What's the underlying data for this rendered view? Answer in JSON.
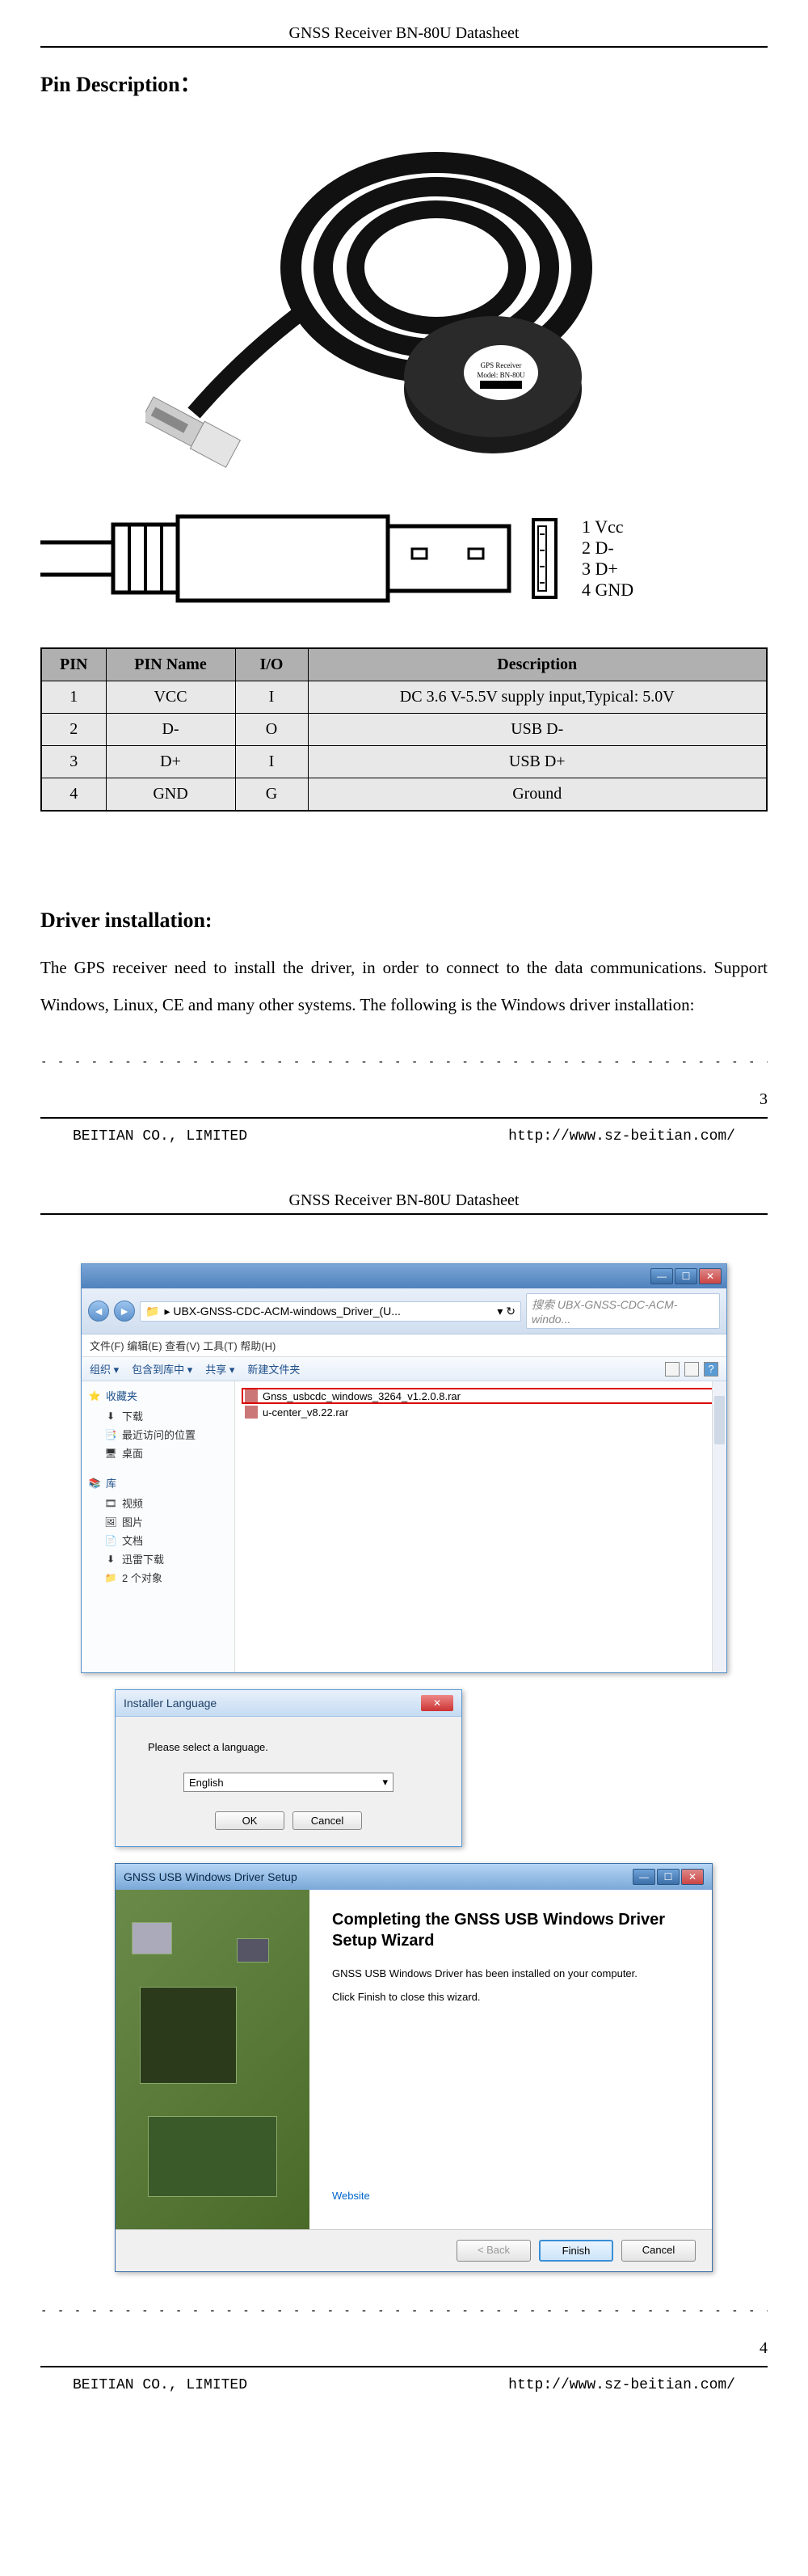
{
  "doc": {
    "header": "GNSS Receiver BN-80U Datasheet",
    "footer_company": "BEITIAN CO., LIMITED",
    "footer_url": "http://www.sz-beitian.com/"
  },
  "page3": {
    "section_title": "Pin Description：",
    "pin_labels": [
      "1 Vcc",
      "2 D-",
      "3 D+",
      "4 GND"
    ],
    "table": {
      "headers": [
        "PIN",
        "PIN Name",
        "I/O",
        "Description"
      ],
      "rows": [
        [
          "1",
          "VCC",
          "I",
          "DC 3.6 V-5.5V supply input,Typical: 5.0V"
        ],
        [
          "2",
          "D-",
          "O",
          "USB D-"
        ],
        [
          "3",
          "D+",
          "I",
          "USB D+"
        ],
        [
          "4",
          "GND",
          "G",
          "Ground"
        ]
      ],
      "col_widths": [
        "80px",
        "160px",
        "90px",
        "auto"
      ]
    },
    "section2_title": "Driver installation:",
    "body_text": "The GPS receiver need to install the driver, in order to connect to the data communications. Support Windows, Linux, CE and many other systems. The following is the Windows driver installation:",
    "page_num": "3"
  },
  "page4": {
    "explorer": {
      "address": "▸ UBX-GNSS-CDC-ACM-windows_Driver_(U...",
      "search_placeholder": "搜索 UBX-GNSS-CDC-ACM-windo...",
      "menu": "文件(F)   编辑(E)   查看(V)   工具(T)   帮助(H)",
      "toolbar": {
        "organize": "组织 ▾",
        "include": "包含到库中 ▾",
        "share": "共享 ▾",
        "newfolder": "新建文件夹"
      },
      "sidebar": {
        "favorites": "收藏夹",
        "fav_items": [
          "下载",
          "最近访问的位置",
          "桌面"
        ],
        "library": "库",
        "lib_items": [
          "视频",
          "图片",
          "文档",
          "迅雷下载",
          "2 个对象"
        ]
      },
      "files": [
        {
          "name": "Gnss_usbcdc_windows_3264_v1.2.0.8.rar",
          "highlighted": true
        },
        {
          "name": "u-center_v8.22.rar",
          "highlighted": false
        }
      ]
    },
    "installer": {
      "title": "Installer Language",
      "prompt": "Please select a language.",
      "language": "English",
      "ok": "OK",
      "cancel": "Cancel"
    },
    "wizard": {
      "title": "GNSS USB Windows Driver Setup",
      "heading": "Completing the GNSS USB Windows Driver Setup Wizard",
      "line1": "GNSS USB Windows Driver has been installed on your computer.",
      "line2": "Click Finish to close this wizard.",
      "website": "Website",
      "back": "< Back",
      "finish": "Finish",
      "cancel": "Cancel"
    },
    "page_num": "4"
  },
  "colors": {
    "table_header_bg": "#b0b0b0",
    "table_cell_bg": "#e8e8e8",
    "win_blue": "#5a8fc7",
    "link": "#0066cc"
  }
}
